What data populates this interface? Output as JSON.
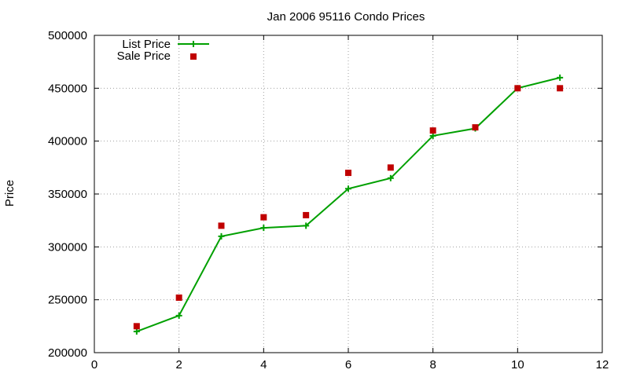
{
  "chart_data": {
    "type": "line",
    "title": "Jan 2006 95116 Condo Prices",
    "xlabel": "",
    "ylabel": "Price",
    "xlim": [
      0,
      12
    ],
    "ylim": [
      200000,
      500000
    ],
    "xticks": [
      "0",
      "2",
      "4",
      "6",
      "8",
      "10",
      "12"
    ],
    "yticks": [
      "200000",
      "250000",
      "300000",
      "350000",
      "400000",
      "450000",
      "500000"
    ],
    "grid": true,
    "legend_position": "top-left",
    "x": [
      1,
      2,
      3,
      4,
      5,
      6,
      7,
      8,
      9,
      10,
      11
    ],
    "series": [
      {
        "name": "List Price",
        "style": "linespoints",
        "marker": "plus",
        "color": "#00a000",
        "values": [
          220000,
          235000,
          310000,
          318000,
          320000,
          355000,
          365000,
          405000,
          412000,
          450000,
          460000
        ]
      },
      {
        "name": "Sale Price",
        "style": "points",
        "marker": "square",
        "color": "#c00000",
        "values": [
          225000,
          252000,
          320000,
          328000,
          330000,
          370000,
          375000,
          410000,
          413000,
          450000,
          450000
        ]
      }
    ]
  }
}
